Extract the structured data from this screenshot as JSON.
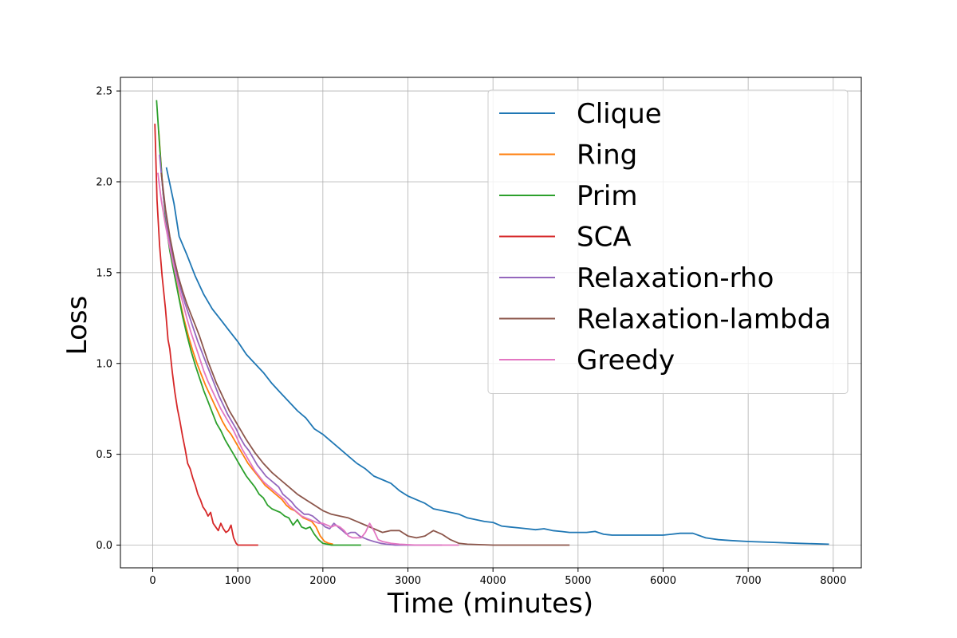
{
  "chart_data": {
    "type": "line",
    "xlabel": "Time (minutes)",
    "ylabel": "Loss",
    "xlim": [
      -380,
      8330
    ],
    "ylim": [
      -0.125,
      2.575
    ],
    "xticks": [
      0,
      1000,
      2000,
      3000,
      4000,
      5000,
      6000,
      7000,
      8000
    ],
    "xtick_labels": [
      "0",
      "1000",
      "2000",
      "3000",
      "4000",
      "5000",
      "6000",
      "7000",
      "8000"
    ],
    "yticks": [
      0.0,
      0.5,
      1.0,
      1.5,
      2.0,
      2.5
    ],
    "ytick_labels": [
      "0.0",
      "0.5",
      "1.0",
      "1.5",
      "2.0",
      "2.5"
    ],
    "grid": true,
    "legend_position": "top-right",
    "series": [
      {
        "name": "Clique",
        "color": "#1f77b4",
        "x": [
          160,
          250,
          310,
          400,
          500,
          600,
          700,
          800,
          900,
          1000,
          1100,
          1200,
          1300,
          1400,
          1500,
          1600,
          1700,
          1800,
          1900,
          2000,
          2100,
          2200,
          2300,
          2400,
          2500,
          2600,
          2700,
          2800,
          2900,
          3000,
          3100,
          3200,
          3300,
          3400,
          3500,
          3600,
          3700,
          3800,
          3900,
          4000,
          4100,
          4200,
          4300,
          4400,
          4500,
          4600,
          4700,
          4800,
          4900,
          5000,
          5100,
          5200,
          5300,
          5400,
          5600,
          5800,
          6000,
          6100,
          6200,
          6350,
          6500,
          6650,
          6800,
          7000,
          7300,
          7600,
          7950
        ],
        "y": [
          2.08,
          1.88,
          1.7,
          1.6,
          1.48,
          1.38,
          1.3,
          1.24,
          1.18,
          1.12,
          1.05,
          1.0,
          0.95,
          0.89,
          0.84,
          0.79,
          0.74,
          0.7,
          0.64,
          0.61,
          0.57,
          0.53,
          0.49,
          0.45,
          0.42,
          0.38,
          0.36,
          0.34,
          0.3,
          0.27,
          0.25,
          0.23,
          0.2,
          0.19,
          0.18,
          0.17,
          0.15,
          0.14,
          0.13,
          0.125,
          0.105,
          0.1,
          0.095,
          0.09,
          0.085,
          0.09,
          0.08,
          0.075,
          0.07,
          0.07,
          0.07,
          0.075,
          0.06,
          0.055,
          0.055,
          0.055,
          0.055,
          0.06,
          0.065,
          0.065,
          0.04,
          0.03,
          0.025,
          0.02,
          0.015,
          0.01,
          0.005
        ]
      },
      {
        "name": "Ring",
        "color": "#ff7f0e",
        "x": [
          70,
          120,
          170,
          220,
          270,
          320,
          370,
          420,
          470,
          520,
          570,
          620,
          670,
          720,
          770,
          820,
          870,
          920,
          970,
          1020,
          1070,
          1120,
          1170,
          1220,
          1270,
          1320,
          1370,
          1420,
          1470,
          1520,
          1570,
          1620,
          1670,
          1720,
          1770,
          1820,
          1870,
          1920,
          1970,
          2020,
          2070,
          2120
        ],
        "y": [
          2.28,
          1.95,
          1.72,
          1.58,
          1.46,
          1.34,
          1.24,
          1.15,
          1.07,
          1.0,
          0.94,
          0.88,
          0.83,
          0.78,
          0.73,
          0.68,
          0.64,
          0.61,
          0.57,
          0.53,
          0.49,
          0.45,
          0.42,
          0.39,
          0.36,
          0.33,
          0.31,
          0.29,
          0.27,
          0.25,
          0.22,
          0.2,
          0.19,
          0.17,
          0.15,
          0.14,
          0.13,
          0.1,
          0.05,
          0.02,
          0.01,
          0.005
        ]
      },
      {
        "name": "Prim",
        "color": "#2ca02c",
        "x": [
          45,
          80,
          120,
          160,
          200,
          250,
          300,
          350,
          400,
          450,
          500,
          550,
          600,
          650,
          700,
          750,
          800,
          850,
          900,
          950,
          1000,
          1050,
          1100,
          1150,
          1200,
          1250,
          1300,
          1350,
          1400,
          1450,
          1500,
          1550,
          1600,
          1650,
          1700,
          1750,
          1800,
          1850,
          1900,
          1950,
          2000,
          2050,
          2100,
          2200,
          2300,
          2450
        ],
        "y": [
          2.45,
          2.2,
          1.95,
          1.75,
          1.62,
          1.5,
          1.38,
          1.26,
          1.16,
          1.07,
          0.99,
          0.92,
          0.85,
          0.79,
          0.73,
          0.67,
          0.63,
          0.58,
          0.54,
          0.5,
          0.46,
          0.42,
          0.38,
          0.35,
          0.32,
          0.28,
          0.26,
          0.22,
          0.2,
          0.19,
          0.18,
          0.16,
          0.15,
          0.11,
          0.14,
          0.1,
          0.09,
          0.1,
          0.06,
          0.03,
          0.01,
          0.005,
          0.0,
          0.0,
          0.0,
          0.0
        ]
      },
      {
        "name": "SCA",
        "color": "#d62728",
        "x": [
          25,
          50,
          80,
          110,
          150,
          180,
          200,
          230,
          260,
          290,
          320,
          350,
          380,
          410,
          440,
          470,
          500,
          530,
          560,
          590,
          620,
          650,
          680,
          710,
          740,
          770,
          800,
          830,
          860,
          890,
          920,
          950,
          980,
          1000,
          1050,
          1100,
          1150,
          1240
        ],
        "y": [
          2.32,
          1.9,
          1.65,
          1.48,
          1.3,
          1.13,
          1.08,
          0.95,
          0.84,
          0.75,
          0.68,
          0.6,
          0.53,
          0.45,
          0.42,
          0.37,
          0.33,
          0.28,
          0.25,
          0.21,
          0.19,
          0.16,
          0.18,
          0.12,
          0.1,
          0.08,
          0.12,
          0.09,
          0.07,
          0.08,
          0.11,
          0.04,
          0.01,
          0.0,
          0.0,
          0.0,
          0.0,
          0.0
        ]
      },
      {
        "name": "Relaxation-rho",
        "color": "#9467bd",
        "x": [
          80,
          130,
          180,
          230,
          280,
          330,
          380,
          430,
          480,
          530,
          580,
          630,
          680,
          730,
          780,
          830,
          880,
          930,
          980,
          1030,
          1080,
          1130,
          1180,
          1230,
          1280,
          1330,
          1380,
          1430,
          1480,
          1530,
          1580,
          1630,
          1680,
          1730,
          1780,
          1830,
          1880,
          1930,
          1980,
          2030,
          2080,
          2130,
          2180,
          2230,
          2280,
          2330,
          2380,
          2430,
          2480,
          2530,
          2600,
          2680,
          2750,
          2850,
          3000,
          3200,
          3400
        ],
        "y": [
          2.15,
          1.9,
          1.72,
          1.6,
          1.5,
          1.41,
          1.33,
          1.26,
          1.19,
          1.12,
          1.06,
          1.0,
          0.94,
          0.88,
          0.82,
          0.77,
          0.72,
          0.68,
          0.64,
          0.59,
          0.55,
          0.52,
          0.48,
          0.44,
          0.41,
          0.38,
          0.36,
          0.34,
          0.32,
          0.28,
          0.26,
          0.24,
          0.21,
          0.19,
          0.17,
          0.17,
          0.16,
          0.14,
          0.12,
          0.1,
          0.09,
          0.12,
          0.1,
          0.08,
          0.06,
          0.07,
          0.07,
          0.05,
          0.04,
          0.03,
          0.02,
          0.01,
          0.005,
          0.0,
          0.0,
          0.0,
          0.0
        ]
      },
      {
        "name": "Relaxation-lambda",
        "color": "#8c564b",
        "x": [
          100,
          150,
          200,
          250,
          300,
          350,
          400,
          450,
          500,
          550,
          600,
          650,
          700,
          750,
          800,
          850,
          900,
          950,
          1000,
          1100,
          1200,
          1300,
          1400,
          1500,
          1600,
          1700,
          1800,
          1900,
          2000,
          2100,
          2200,
          2300,
          2400,
          2500,
          2600,
          2700,
          2800,
          2900,
          3000,
          3100,
          3200,
          3300,
          3400,
          3500,
          3600,
          3700,
          4000,
          4300,
          4600,
          4900
        ],
        "y": [
          2.05,
          1.85,
          1.7,
          1.58,
          1.48,
          1.4,
          1.33,
          1.27,
          1.21,
          1.15,
          1.08,
          1.01,
          0.95,
          0.89,
          0.84,
          0.79,
          0.74,
          0.7,
          0.66,
          0.58,
          0.51,
          0.45,
          0.4,
          0.36,
          0.32,
          0.28,
          0.25,
          0.22,
          0.19,
          0.17,
          0.16,
          0.15,
          0.13,
          0.11,
          0.09,
          0.07,
          0.08,
          0.08,
          0.05,
          0.04,
          0.05,
          0.08,
          0.06,
          0.03,
          0.01,
          0.005,
          0.0,
          0.0,
          0.0,
          0.0
        ]
      },
      {
        "name": "Greedy",
        "color": "#e377c2",
        "x": [
          60,
          100,
          150,
          200,
          250,
          300,
          350,
          400,
          450,
          500,
          550,
          600,
          650,
          700,
          750,
          800,
          850,
          900,
          950,
          1000,
          1050,
          1100,
          1150,
          1200,
          1250,
          1300,
          1350,
          1400,
          1450,
          1500,
          1550,
          1600,
          1650,
          1700,
          1750,
          1800,
          1850,
          1900,
          1950,
          2000,
          2050,
          2100,
          2150,
          2200,
          2250,
          2300,
          2350,
          2400,
          2450,
          2500,
          2550,
          2600,
          2650,
          2700,
          2800,
          2900,
          3100,
          3300,
          3600
        ],
        "y": [
          2.05,
          1.9,
          1.76,
          1.64,
          1.53,
          1.43,
          1.34,
          1.25,
          1.17,
          1.1,
          1.03,
          0.96,
          0.9,
          0.85,
          0.8,
          0.75,
          0.71,
          0.67,
          0.63,
          0.58,
          0.53,
          0.49,
          0.45,
          0.41,
          0.38,
          0.35,
          0.33,
          0.31,
          0.29,
          0.27,
          0.25,
          0.22,
          0.2,
          0.18,
          0.16,
          0.15,
          0.14,
          0.13,
          0.12,
          0.12,
          0.11,
          0.1,
          0.11,
          0.1,
          0.08,
          0.05,
          0.04,
          0.04,
          0.04,
          0.07,
          0.12,
          0.08,
          0.03,
          0.02,
          0.01,
          0.005,
          0.0,
          0.0,
          0.0
        ]
      }
    ]
  }
}
